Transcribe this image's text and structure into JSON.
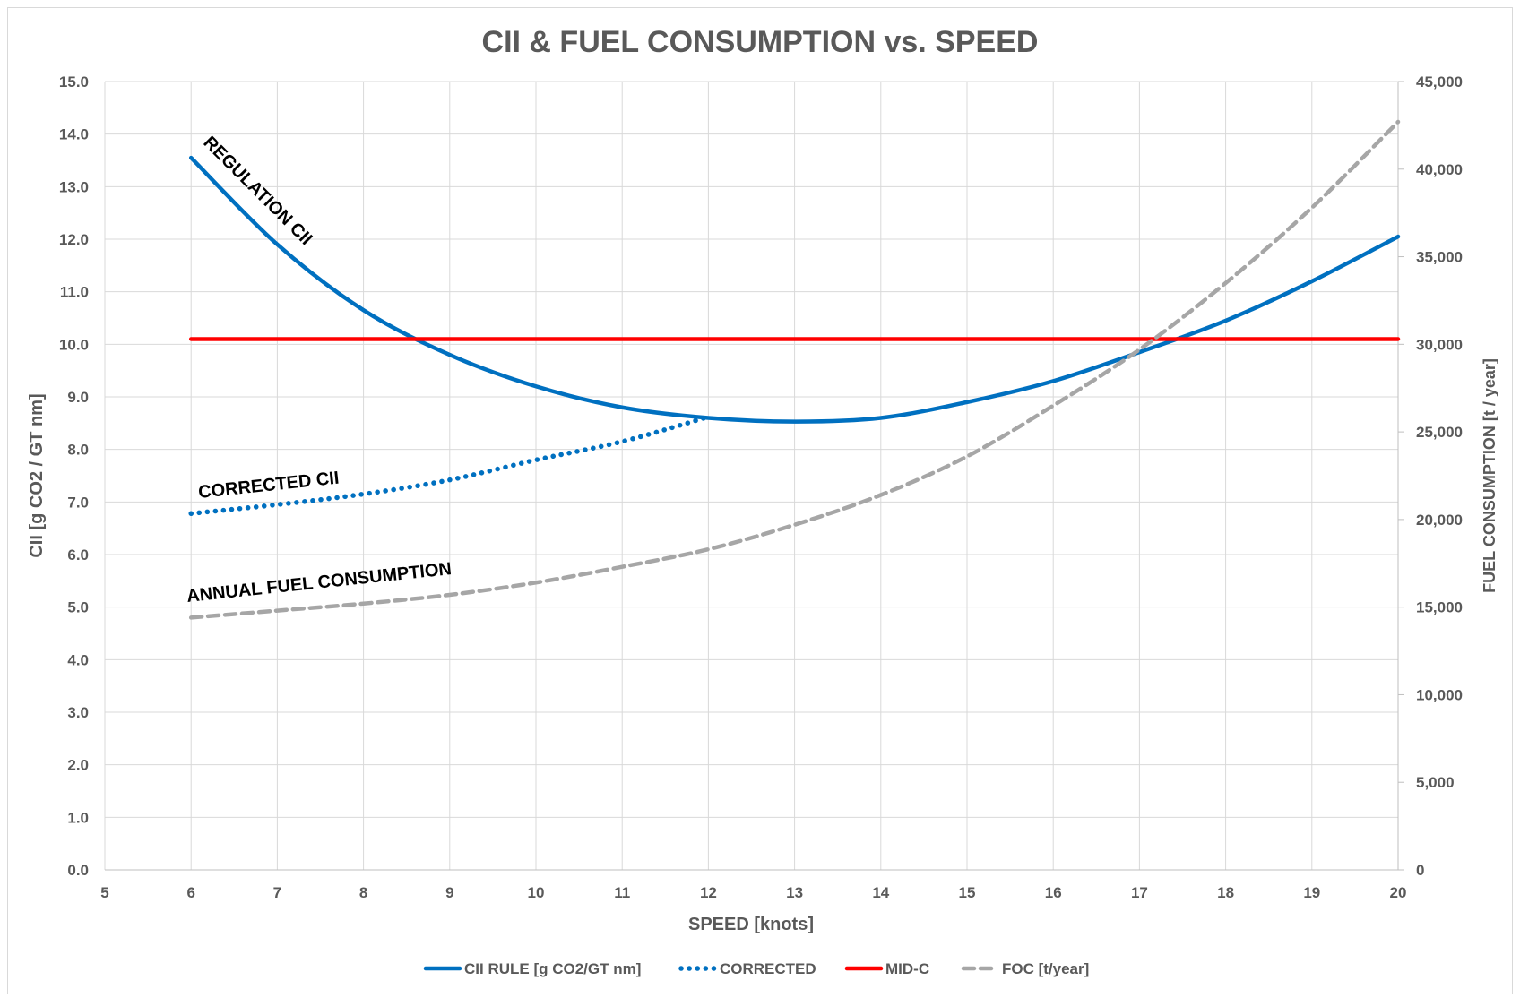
{
  "chart_data": {
    "type": "line",
    "title": "CII & FUEL CONSUMPTION vs. SPEED",
    "xlabel": "SPEED [knots]",
    "ylabel": "CII [g CO2 / GT nm]",
    "y2label": "FUEL CONSUMPTION [t / year]",
    "xlim": [
      5,
      20
    ],
    "ylim": [
      0,
      15
    ],
    "y2lim": [
      0,
      45000
    ],
    "xticks": [
      "5",
      "6",
      "7",
      "8",
      "9",
      "10",
      "11",
      "12",
      "13",
      "14",
      "15",
      "16",
      "17",
      "18",
      "19",
      "20"
    ],
    "yticks": [
      "0.0",
      "1.0",
      "2.0",
      "3.0",
      "4.0",
      "5.0",
      "6.0",
      "7.0",
      "8.0",
      "9.0",
      "10.0",
      "11.0",
      "12.0",
      "13.0",
      "14.0",
      "15.0"
    ],
    "y2ticks": [
      "0",
      "5,000",
      "10,000",
      "15,000",
      "20,000",
      "25,000",
      "30,000",
      "35,000",
      "40,000",
      "45,000"
    ],
    "grid": true,
    "legend_position": "bottom",
    "series": [
      {
        "name": "CII RULE [g CO2/GT nm]",
        "axis": "left",
        "style": "solid",
        "color": "#0070c0",
        "x": [
          6,
          7,
          8,
          9,
          10,
          11,
          12,
          13,
          14,
          15,
          16,
          17,
          18,
          19,
          20
        ],
        "values": [
          13.55,
          11.9,
          10.65,
          9.8,
          9.2,
          8.8,
          8.6,
          8.53,
          8.6,
          8.9,
          9.3,
          9.85,
          10.45,
          11.2,
          12.05
        ]
      },
      {
        "name": "CORRECTED",
        "axis": "left",
        "style": "dotted",
        "color": "#0070c0",
        "x": [
          6,
          7,
          8,
          9,
          10,
          11,
          12
        ],
        "values": [
          6.78,
          6.95,
          7.15,
          7.42,
          7.8,
          8.15,
          8.62
        ]
      },
      {
        "name": "MID-C",
        "axis": "left",
        "style": "solid",
        "color": "#ff0000",
        "x": [
          6,
          20
        ],
        "values": [
          10.1,
          10.1
        ]
      },
      {
        "name": "FOC [t/year]",
        "axis": "right",
        "style": "dashed",
        "color": "#a6a6a6",
        "x": [
          6,
          7,
          8,
          9,
          10,
          11,
          12,
          13,
          14,
          15,
          16,
          17,
          18,
          19,
          20
        ],
        "values": [
          14400,
          14800,
          15200,
          15700,
          16400,
          17300,
          18300,
          19700,
          21400,
          23600,
          26500,
          29700,
          33500,
          37800,
          42700
        ]
      }
    ],
    "annotations": [
      "REGULATION CII",
      "CORRECTED CII",
      "ANNUAL FUEL CONSUMPTION"
    ]
  }
}
